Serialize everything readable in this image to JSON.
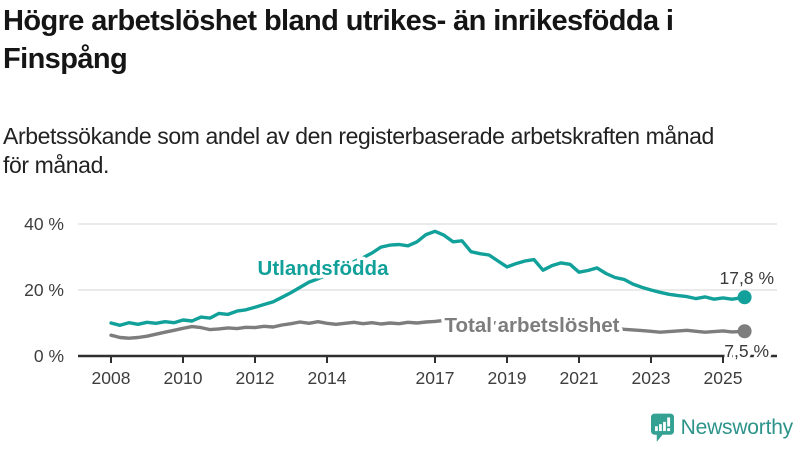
{
  "header": {
    "title": "Högre arbetslöshet bland utrikes- än inrikesfödda i\nFinspång",
    "subtitle": "Arbetssökande som andel av den registerbaserade arbetskraften månad\nför månad."
  },
  "branding": {
    "logo_text": "Newsworthy",
    "logo_icon": "bar-chart-speech-bubble-icon",
    "icon_color": "#35a193",
    "text_color": "#2e938a"
  },
  "colors": {
    "accent_teal": "#12a19a",
    "neutral_gray": "#7d7d7d",
    "axis": "#2f2f2f",
    "gridline": "#e3e3e3",
    "tick_label": "#3e3e3e",
    "value_label": "#3a3a3a"
  },
  "chart_data": {
    "type": "line",
    "grid": "horizontal-only",
    "legend_position": "inline-labels",
    "x_axis": {
      "ticks": [
        2008,
        2010,
        2012,
        2014,
        2017,
        2019,
        2021,
        2023,
        2025
      ],
      "range": [
        2007.1,
        2026.5
      ]
    },
    "y_axis": {
      "unit": "%",
      "ticks": [
        0,
        20,
        40
      ],
      "tick_labels": [
        "0 %",
        "20 %",
        "40 %"
      ],
      "range": [
        0,
        43
      ]
    },
    "series": [
      {
        "name": "Utlandsfödda",
        "color": "#12a19a",
        "end_label": "17,8 %",
        "end_value": 17.8,
        "points": [
          [
            2008.0,
            10.0
          ],
          [
            2008.25,
            9.3
          ],
          [
            2008.5,
            10.1
          ],
          [
            2008.75,
            9.6
          ],
          [
            2009.0,
            10.2
          ],
          [
            2009.25,
            9.9
          ],
          [
            2009.5,
            10.4
          ],
          [
            2009.75,
            10.1
          ],
          [
            2010.0,
            10.9
          ],
          [
            2010.25,
            10.6
          ],
          [
            2010.5,
            11.8
          ],
          [
            2010.75,
            11.5
          ],
          [
            2011.0,
            12.9
          ],
          [
            2011.25,
            12.6
          ],
          [
            2011.5,
            13.6
          ],
          [
            2011.75,
            14.0
          ],
          [
            2012.0,
            14.8
          ],
          [
            2012.25,
            15.6
          ],
          [
            2012.5,
            16.4
          ],
          [
            2012.75,
            17.8
          ],
          [
            2013.0,
            19.2
          ],
          [
            2013.25,
            20.8
          ],
          [
            2013.5,
            22.4
          ],
          [
            2013.75,
            23.4
          ],
          [
            2014.0,
            24.6
          ],
          [
            2014.25,
            25.8
          ],
          [
            2014.5,
            27.0
          ],
          [
            2014.75,
            28.6
          ],
          [
            2015.0,
            29.8
          ],
          [
            2015.25,
            31.2
          ],
          [
            2015.5,
            33.0
          ],
          [
            2015.75,
            33.6
          ],
          [
            2016.0,
            33.8
          ],
          [
            2016.25,
            33.4
          ],
          [
            2016.5,
            34.6
          ],
          [
            2016.75,
            36.8
          ],
          [
            2017.0,
            37.8
          ],
          [
            2017.25,
            36.6
          ],
          [
            2017.5,
            34.6
          ],
          [
            2017.75,
            34.9
          ],
          [
            2018.0,
            31.6
          ],
          [
            2018.25,
            31.0
          ],
          [
            2018.5,
            30.6
          ],
          [
            2018.75,
            28.8
          ],
          [
            2019.0,
            27.0
          ],
          [
            2019.25,
            28.0
          ],
          [
            2019.5,
            28.8
          ],
          [
            2019.75,
            29.2
          ],
          [
            2020.0,
            26.0
          ],
          [
            2020.25,
            27.4
          ],
          [
            2020.5,
            28.2
          ],
          [
            2020.75,
            27.8
          ],
          [
            2021.0,
            25.4
          ],
          [
            2021.25,
            25.9
          ],
          [
            2021.5,
            26.7
          ],
          [
            2021.75,
            25.0
          ],
          [
            2022.0,
            23.8
          ],
          [
            2022.25,
            23.2
          ],
          [
            2022.5,
            21.8
          ],
          [
            2022.75,
            20.8
          ],
          [
            2023.0,
            20.0
          ],
          [
            2023.25,
            19.3
          ],
          [
            2023.5,
            18.7
          ],
          [
            2023.75,
            18.3
          ],
          [
            2024.0,
            18.0
          ],
          [
            2024.25,
            17.4
          ],
          [
            2024.5,
            17.9
          ],
          [
            2024.75,
            17.2
          ],
          [
            2025.0,
            17.6
          ],
          [
            2025.25,
            17.2
          ],
          [
            2025.6,
            17.8
          ]
        ]
      },
      {
        "name": "Total arbetslöshet",
        "color": "#7d7d7d",
        "end_label": "7,5 %",
        "end_value": 7.5,
        "points": [
          [
            2008.0,
            6.3
          ],
          [
            2008.25,
            5.6
          ],
          [
            2008.5,
            5.4
          ],
          [
            2008.75,
            5.6
          ],
          [
            2009.0,
            6.0
          ],
          [
            2009.25,
            6.6
          ],
          [
            2009.5,
            7.2
          ],
          [
            2009.75,
            7.8
          ],
          [
            2010.0,
            8.4
          ],
          [
            2010.25,
            8.9
          ],
          [
            2010.5,
            8.6
          ],
          [
            2010.75,
            8.0
          ],
          [
            2011.0,
            8.2
          ],
          [
            2011.25,
            8.5
          ],
          [
            2011.5,
            8.3
          ],
          [
            2011.75,
            8.7
          ],
          [
            2012.0,
            8.6
          ],
          [
            2012.25,
            9.0
          ],
          [
            2012.5,
            8.8
          ],
          [
            2012.75,
            9.4
          ],
          [
            2013.0,
            9.8
          ],
          [
            2013.25,
            10.3
          ],
          [
            2013.5,
            9.9
          ],
          [
            2013.75,
            10.4
          ],
          [
            2014.0,
            9.9
          ],
          [
            2014.25,
            9.6
          ],
          [
            2014.5,
            9.9
          ],
          [
            2014.75,
            10.2
          ],
          [
            2015.0,
            9.8
          ],
          [
            2015.25,
            10.1
          ],
          [
            2015.5,
            9.7
          ],
          [
            2015.75,
            10.0
          ],
          [
            2016.0,
            9.8
          ],
          [
            2016.25,
            10.2
          ],
          [
            2016.5,
            10.0
          ],
          [
            2016.75,
            10.3
          ],
          [
            2017.0,
            10.5
          ],
          [
            2017.25,
            10.8
          ],
          [
            2017.5,
            11.0
          ],
          [
            2017.75,
            10.7
          ],
          [
            2018.0,
            10.4
          ],
          [
            2018.25,
            10.2
          ],
          [
            2018.5,
            9.9
          ],
          [
            2018.75,
            10.1
          ],
          [
            2019.0,
            9.8
          ],
          [
            2019.25,
            10.0
          ],
          [
            2019.5,
            9.9
          ],
          [
            2019.75,
            9.6
          ],
          [
            2020.0,
            9.9
          ],
          [
            2020.25,
            10.4
          ],
          [
            2020.5,
            10.6
          ],
          [
            2020.75,
            10.2
          ],
          [
            2021.0,
            9.8
          ],
          [
            2021.25,
            9.4
          ],
          [
            2021.5,
            9.0
          ],
          [
            2021.75,
            8.7
          ],
          [
            2022.0,
            8.4
          ],
          [
            2022.25,
            8.1
          ],
          [
            2022.5,
            7.9
          ],
          [
            2022.75,
            7.7
          ],
          [
            2023.0,
            7.5
          ],
          [
            2023.25,
            7.2
          ],
          [
            2023.5,
            7.4
          ],
          [
            2023.75,
            7.6
          ],
          [
            2024.0,
            7.8
          ],
          [
            2024.25,
            7.5
          ],
          [
            2024.5,
            7.2
          ],
          [
            2024.75,
            7.4
          ],
          [
            2025.0,
            7.6
          ],
          [
            2025.25,
            7.3
          ],
          [
            2025.6,
            7.5
          ]
        ]
      }
    ]
  }
}
